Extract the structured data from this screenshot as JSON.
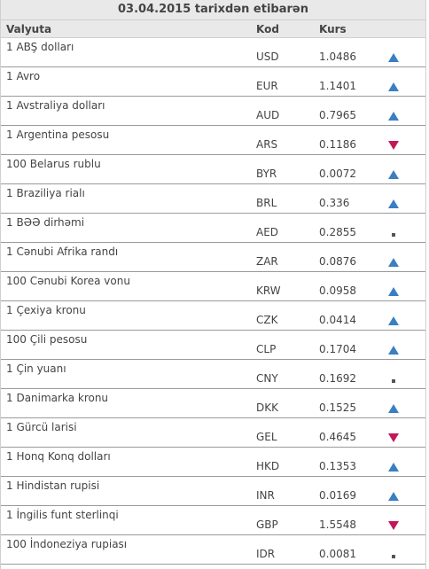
{
  "title": "03.04.2015 tarixdən etibarən",
  "columns": {
    "currency": "Valyuta",
    "code": "Kod",
    "rate": "Kurs"
  },
  "colors": {
    "up": "#3a7fc1",
    "down": "#c2185b",
    "same": "#555555"
  },
  "rows": [
    {
      "name": "1 ABŞ dolları",
      "code": "USD",
      "rate": "1.0486",
      "trend": "up"
    },
    {
      "name": "1 Avro",
      "code": "EUR",
      "rate": "1.1401",
      "trend": "up"
    },
    {
      "name": "1 Avstraliya dolları",
      "code": "AUD",
      "rate": "0.7965",
      "trend": "up"
    },
    {
      "name": "1 Argentina pesosu",
      "code": "ARS",
      "rate": "0.1186",
      "trend": "down"
    },
    {
      "name": "100 Belarus rublu",
      "code": "BYR",
      "rate": "0.0072",
      "trend": "up"
    },
    {
      "name": "1 Braziliya rialı",
      "code": "BRL",
      "rate": "0.336",
      "trend": "up"
    },
    {
      "name": "1 BƏƏ dirhəmi",
      "code": "AED",
      "rate": "0.2855",
      "trend": "same"
    },
    {
      "name": "1 Cənubi Afrika randı",
      "code": "ZAR",
      "rate": "0.0876",
      "trend": "up"
    },
    {
      "name": "100 Cənubi Korea vonu",
      "code": "KRW",
      "rate": "0.0958",
      "trend": "up"
    },
    {
      "name": "1 Çexiya kronu",
      "code": "CZK",
      "rate": "0.0414",
      "trend": "up"
    },
    {
      "name": "100 Çili pesosu",
      "code": "CLP",
      "rate": "0.1704",
      "trend": "up"
    },
    {
      "name": "1 Çin yuanı",
      "code": "CNY",
      "rate": "0.1692",
      "trend": "same"
    },
    {
      "name": "1 Danimarka kronu",
      "code": "DKK",
      "rate": "0.1525",
      "trend": "up"
    },
    {
      "name": "1 Gürcü larisi",
      "code": "GEL",
      "rate": "0.4645",
      "trend": "down"
    },
    {
      "name": "1 Honq Konq dolları",
      "code": "HKD",
      "rate": "0.1353",
      "trend": "up"
    },
    {
      "name": "1 Hindistan rupisi",
      "code": "INR",
      "rate": "0.0169",
      "trend": "up"
    },
    {
      "name": "1 İngilis funt sterlinqi",
      "code": "GBP",
      "rate": "1.5548",
      "trend": "down"
    },
    {
      "name": "100 İndoneziya rupiası",
      "code": "IDR",
      "rate": "0.0081",
      "trend": "same"
    }
  ]
}
